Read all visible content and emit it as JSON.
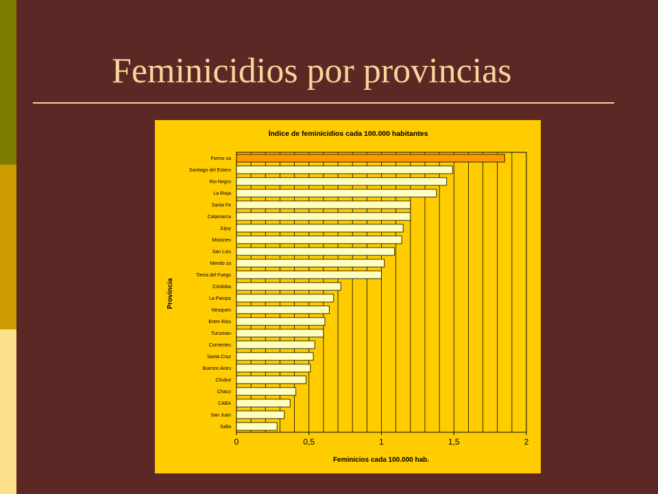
{
  "slide": {
    "title": "Feminicidios por provincias"
  },
  "colors": {
    "background": "#5c2825",
    "title": "#f7d59a",
    "panel": "#ffcc00",
    "bar": "#ffffc0",
    "bar_highlight": "#ff9900",
    "strip_top": "#7b7c00",
    "strip_middle": "#cc9b00",
    "strip_bottom": "#ffe08a"
  },
  "chart_data": {
    "type": "bar",
    "orientation": "horizontal",
    "title": "Índice de feminicidios cada 100.000 habitantes",
    "xlabel": "Feminicios cada 100.000 hab.",
    "ylabel": "Provincia",
    "xlim": [
      0,
      2
    ],
    "xticks": [
      {
        "value": 0,
        "label": "0"
      },
      {
        "value": 0.5,
        "label": "0,5"
      },
      {
        "value": 1,
        "label": "1"
      },
      {
        "value": 1.5,
        "label": "1,5"
      },
      {
        "value": 2,
        "label": "2"
      }
    ],
    "grid_step": 0.1,
    "grid": true,
    "highlighted_category": "Formo sa",
    "categories": [
      "Formo sa",
      "Santiago del Estero",
      "Rio Negro",
      "La Rioja",
      "Santa Fe",
      "Catamarca",
      "Jujuy",
      "Misiones",
      "San Luis",
      "Mendo za",
      "Tierra del Fuego",
      "Córdoba",
      "La Pampa",
      "Neuquen",
      "Entre Rios",
      "Tucuman",
      "Corrientes",
      "Santa Cruz",
      "Buenos Aires",
      "Chubut",
      "Chaco",
      "CABA",
      "San Juan",
      "Salta"
    ],
    "values": [
      1.85,
      1.49,
      1.45,
      1.38,
      1.2,
      1.2,
      1.15,
      1.14,
      1.09,
      1.02,
      1.0,
      0.72,
      0.67,
      0.64,
      0.61,
      0.6,
      0.54,
      0.53,
      0.51,
      0.48,
      0.41,
      0.37,
      0.33,
      0.28
    ]
  }
}
